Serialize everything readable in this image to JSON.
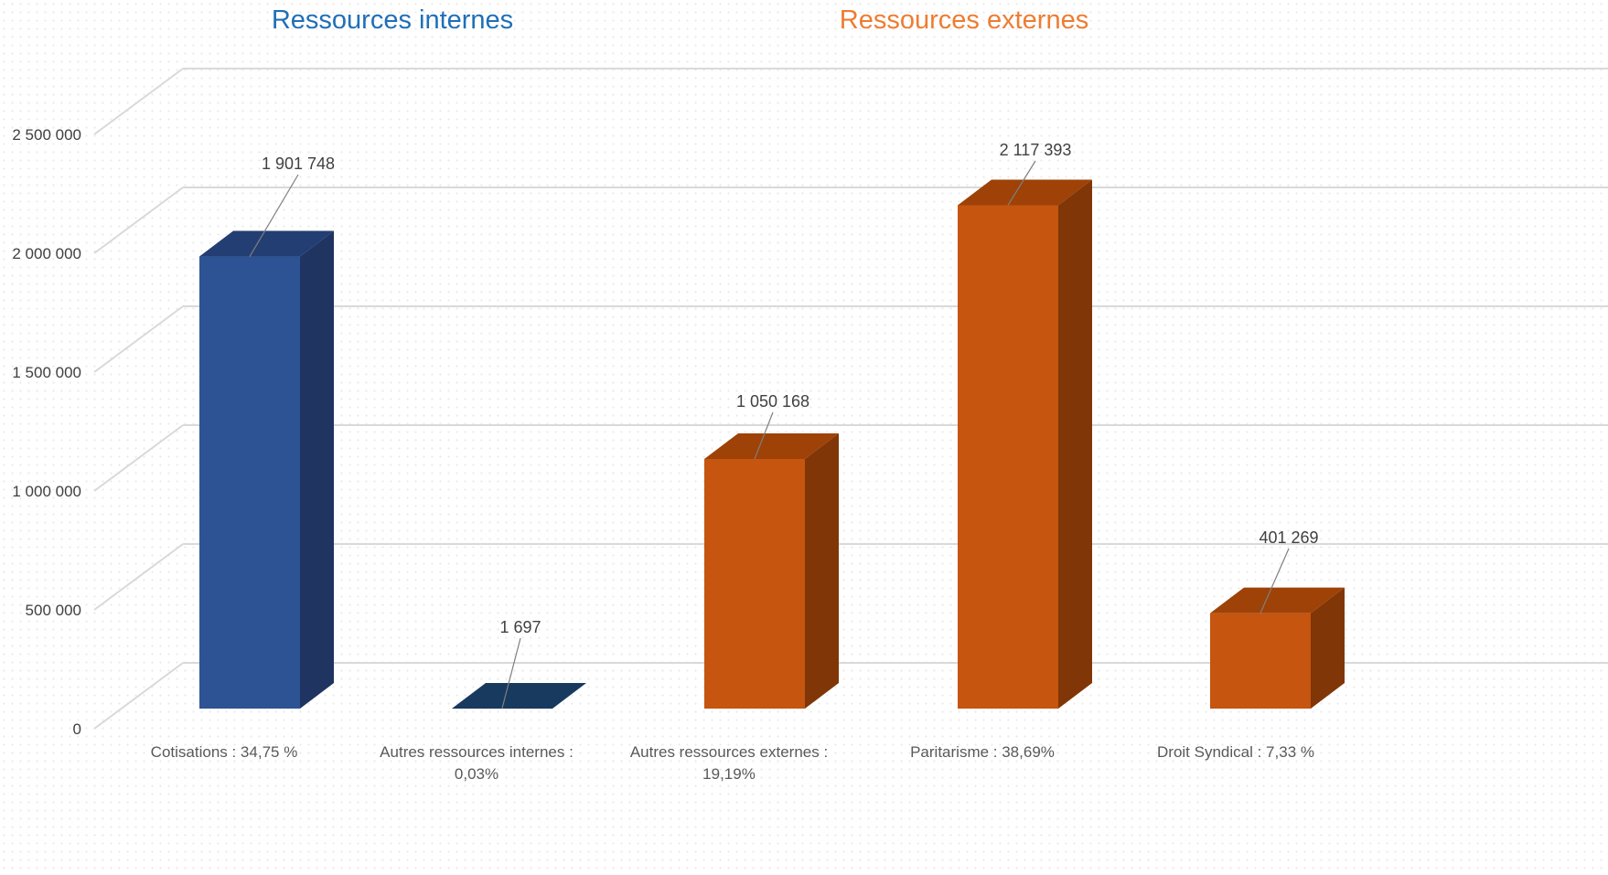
{
  "group_titles": {
    "internal": "Ressources internes",
    "external": "Ressources externes"
  },
  "colors": {
    "internal_title": "#1f6fb8",
    "external_title": "#ee7c31",
    "blue_front": "#2e5395",
    "blue_side": "#1f3461",
    "blue_top": "#223e72",
    "darkblue_top": "#173a5e",
    "orange_front": "#c5550f",
    "orange_side": "#803606",
    "orange_top": "#9e4207",
    "gridline": "#d9d9d9",
    "leader": "#7f7f7f"
  },
  "chart_data": {
    "type": "bar",
    "style": "3d-column",
    "title": "",
    "xlabel": "",
    "ylabel": "",
    "ylim": [
      0,
      2500000
    ],
    "yticks": [
      0,
      500000,
      1000000,
      1500000,
      2000000,
      2500000
    ],
    "ytick_labels": [
      "0",
      "500 000",
      "1 000 000",
      "1 500 000",
      "2 000 000",
      "2 500 000"
    ],
    "grid": true,
    "categories": [
      [
        "Cotisations : 34,75 %"
      ],
      [
        "Autres ressources internes :",
        "0,03%"
      ],
      [
        "Autres ressources externes :",
        "19,19%"
      ],
      [
        "Paritarisme : 38,69%"
      ],
      [
        "Droit Syndical : 7,33 %"
      ]
    ],
    "values": [
      1901748,
      1697,
      1050168,
      2117393,
      401269
    ],
    "value_labels": [
      "1 901 748",
      "1 697",
      "1 050 168",
      "2 117 393",
      "401 269"
    ],
    "bar_groups": [
      "internal",
      "internal",
      "external",
      "external",
      "external"
    ]
  }
}
